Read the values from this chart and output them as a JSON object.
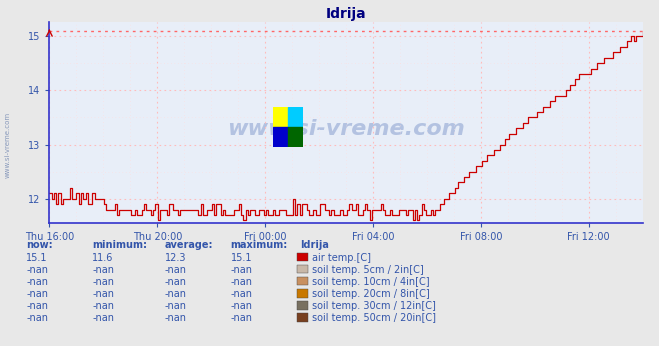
{
  "title": "Idrija",
  "title_color": "#000080",
  "bg_color": "#e8e8e8",
  "plot_bg_color": "#e8eef8",
  "line_color": "#cc0000",
  "dotted_line_color": "#ff6666",
  "axis_color": "#3333cc",
  "grid_color_major": "#ffbbbb",
  "grid_color_minor": "#ffdddd",
  "text_color": "#3355aa",
  "watermark": "www.si-vreme.com",
  "watermark_color": "#aabbdd",
  "ylim": [
    11.55,
    15.25
  ],
  "yticks": [
    12,
    13,
    14,
    15
  ],
  "ymax_dotted": 15.1,
  "xlabels": [
    "Thu 16:00",
    "Thu 20:00",
    "Fri 00:00",
    "Fri 04:00",
    "Fri 08:00",
    "Fri 12:00"
  ],
  "xtick_hours": [
    0,
    4,
    8,
    12,
    16,
    20
  ],
  "total_hours": 22,
  "station": "Idrija",
  "legend_items": [
    {
      "label": "air temp.[C]",
      "color": "#cc0000"
    },
    {
      "label": "soil temp. 5cm / 2in[C]",
      "color": "#c8b8a8"
    },
    {
      "label": "soil temp. 10cm / 4in[C]",
      "color": "#c89060"
    },
    {
      "label": "soil temp. 20cm / 8in[C]",
      "color": "#c87800"
    },
    {
      "label": "soil temp. 30cm / 12in[C]",
      "color": "#787060"
    },
    {
      "label": "soil temp. 50cm / 20in[C]",
      "color": "#784020"
    }
  ],
  "table_headers": [
    "now:",
    "minimum:",
    "average:",
    "maximum:"
  ],
  "table_row1": [
    "15.1",
    "11.6",
    "12.3",
    "15.1"
  ],
  "table_nanrows": [
    [
      "-nan",
      "-nan",
      "-nan",
      "-nan"
    ],
    [
      "-nan",
      "-nan",
      "-nan",
      "-nan"
    ],
    [
      "-nan",
      "-nan",
      "-nan",
      "-nan"
    ],
    [
      "-nan",
      "-nan",
      "-nan",
      "-nan"
    ],
    [
      "-nan",
      "-nan",
      "-nan",
      "-nan"
    ]
  ],
  "logo_colors": [
    "#ffff00",
    "#00ccff",
    "#0000cc",
    "#006600"
  ],
  "left_text": "www.si-vreme.com"
}
